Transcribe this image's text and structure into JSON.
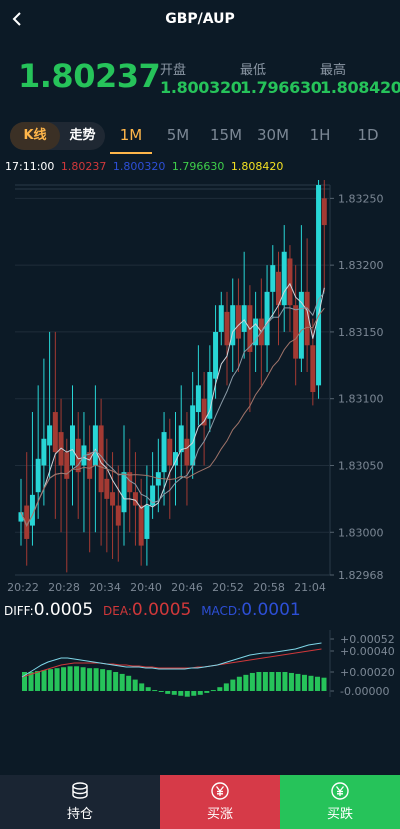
{
  "header": {
    "title": "GBP/AUP"
  },
  "quote": {
    "price": "1.80237",
    "open_label": "开盘",
    "open_value": "1.800320",
    "low_label": "最低",
    "low_value": "1.796630",
    "high_label": "最高",
    "high_value": "1.808420"
  },
  "tabs": {
    "kline": "K线",
    "trend": "走势",
    "periods": [
      "1M",
      "5M",
      "15M",
      "30M",
      "1H",
      "1D"
    ],
    "active": "1M"
  },
  "info_row": {
    "time": "17:11:00",
    "v1": "1.80237",
    "v2": "1.800320",
    "v3": "1.796630",
    "v4": "1.808420"
  },
  "axis": {
    "y_labels": [
      "1.83250",
      "1.83200",
      "1.83150",
      "1.83100",
      "1.83050",
      "1.83000",
      "1.82968"
    ],
    "x_labels": [
      "20:22",
      "20:28",
      "20:34",
      "20:40",
      "20:46",
      "20:52",
      "20:58",
      "21:04"
    ],
    "macd_labels": [
      "+0.00052",
      "+0.00040",
      "+0.00020",
      "-0.00000"
    ]
  },
  "macd": {
    "diff_label": "DIFF:",
    "diff_value": "0.0005",
    "dea_label": "DEA:",
    "dea_value": "0.0005",
    "macd_label": "MACD:",
    "macd_value": "0.0001"
  },
  "bottom": {
    "hold": "持仓",
    "buy_up": "买涨",
    "buy_down": "买跌"
  },
  "colors": {
    "up": "#28d6d6",
    "down": "#a33a33",
    "green": "#26c35a",
    "accent": "#ffb64a",
    "red_btn": "#d63a48",
    "green_btn": "#26c35a"
  },
  "chart_data": {
    "type": "candlestick",
    "ylim": [
      1.82968,
      1.8326
    ],
    "candles": [
      [
        1.83008,
        1.83015,
        1.8299,
        1.8304
      ],
      [
        1.8302,
        1.82995,
        1.82975,
        1.8306
      ],
      [
        1.83005,
        1.83028,
        1.8299,
        1.8309
      ],
      [
        1.8303,
        1.83055,
        1.8301,
        1.8311
      ],
      [
        1.8305,
        1.8307,
        1.8302,
        1.8313
      ],
      [
        1.83065,
        1.8308,
        1.8304,
        1.8315
      ],
      [
        1.8309,
        1.8306,
        1.8301,
        1.8315
      ],
      [
        1.83075,
        1.8305,
        1.83,
        1.831
      ],
      [
        1.8306,
        1.8304,
        1.8297,
        1.8307
      ],
      [
        1.8305,
        1.8308,
        1.8302,
        1.8311
      ],
      [
        1.8307,
        1.83045,
        1.8301,
        1.8309
      ],
      [
        1.8305,
        1.83065,
        1.83,
        1.8309
      ],
      [
        1.8306,
        1.8304,
        1.82985,
        1.8308
      ],
      [
        1.8305,
        1.8308,
        1.83,
        1.8311
      ],
      [
        1.8308,
        1.8303,
        1.8299,
        1.831
      ],
      [
        1.8304,
        1.83025,
        1.82985,
        1.8307
      ],
      [
        1.8303,
        1.8302,
        1.8298,
        1.8306
      ],
      [
        1.8302,
        1.83005,
        1.82978,
        1.8305
      ],
      [
        1.83015,
        1.83045,
        1.8299,
        1.8308
      ],
      [
        1.83045,
        1.8303,
        1.83,
        1.8307
      ],
      [
        1.8303,
        1.8302,
        1.8299,
        1.8306
      ],
      [
        1.8302,
        1.8299,
        1.82975,
        1.8304
      ],
      [
        1.82995,
        1.8302,
        1.82975,
        1.8305
      ],
      [
        1.8302,
        1.83035,
        1.8301,
        1.8306
      ],
      [
        1.83035,
        1.83045,
        1.83015,
        1.8307
      ],
      [
        1.83045,
        1.83075,
        1.8302,
        1.8309
      ],
      [
        1.8307,
        1.8305,
        1.8301,
        1.83085
      ],
      [
        1.8305,
        1.8306,
        1.8302,
        1.8309
      ],
      [
        1.8306,
        1.8308,
        1.8304,
        1.8311
      ],
      [
        1.8307,
        1.8305,
        1.8302,
        1.8309
      ],
      [
        1.8305,
        1.83095,
        1.8304,
        1.8312
      ],
      [
        1.8309,
        1.8311,
        1.8308,
        1.8314
      ],
      [
        1.831,
        1.8308,
        1.8305,
        1.8312
      ],
      [
        1.83085,
        1.8312,
        1.83075,
        1.8314
      ],
      [
        1.83115,
        1.8315,
        1.831,
        1.8317
      ],
      [
        1.8315,
        1.8317,
        1.8314,
        1.8318
      ],
      [
        1.83165,
        1.8314,
        1.8311,
        1.8318
      ],
      [
        1.8314,
        1.8317,
        1.8312,
        1.8319
      ],
      [
        1.8317,
        1.83145,
        1.8312,
        1.8319
      ],
      [
        1.8315,
        1.8317,
        1.8313,
        1.8321
      ],
      [
        1.8317,
        1.83135,
        1.8309,
        1.83185
      ],
      [
        1.8314,
        1.8316,
        1.8312,
        1.8318
      ],
      [
        1.8316,
        1.8314,
        1.8311,
        1.8319
      ],
      [
        1.8314,
        1.8318,
        1.8312,
        1.832
      ],
      [
        1.8318,
        1.832,
        1.8316,
        1.83215
      ],
      [
        1.83195,
        1.8317,
        1.8314,
        1.8321
      ],
      [
        1.8317,
        1.8321,
        1.8315,
        1.8323
      ],
      [
        1.83205,
        1.8317,
        1.8315,
        1.83215
      ],
      [
        1.8317,
        1.8313,
        1.8311,
        1.832
      ],
      [
        1.8313,
        1.8318,
        1.8312,
        1.8323
      ],
      [
        1.8318,
        1.8314,
        1.8312,
        1.8322
      ],
      [
        1.8314,
        1.83105,
        1.83095,
        1.8316
      ],
      [
        1.8311,
        1.8326,
        1.831,
        1.8327
      ],
      [
        1.8325,
        1.8323,
        1.8318,
        1.83265
      ]
    ]
  }
}
